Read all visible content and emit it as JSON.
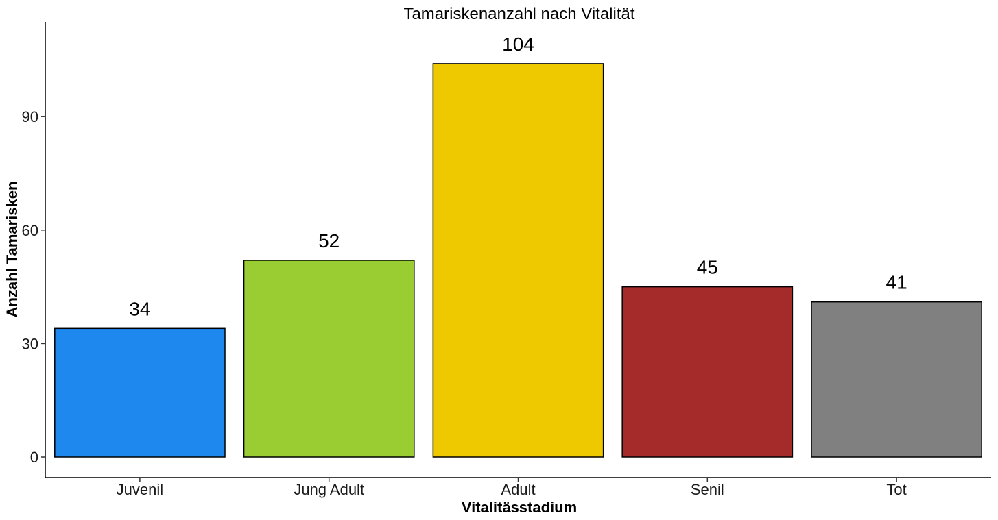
{
  "chart_data": {
    "type": "bar",
    "title": "Tamariskenanzahl nach Vitalität",
    "xlabel": "Vitalitässtadium",
    "ylabel": "Anzahl Tamarisken",
    "categories": [
      "Juvenil",
      "Jung Adult",
      "Adult",
      "Senil",
      "Tot"
    ],
    "values": [
      34,
      52,
      104,
      45,
      41
    ],
    "colors": [
      "#1e88ee",
      "#9acd32",
      "#eec900",
      "#a52a2a",
      "#808080"
    ],
    "ylim": [
      0,
      115
    ],
    "yticks": [
      0,
      30,
      60,
      90
    ],
    "grid": false,
    "legend": "none"
  }
}
